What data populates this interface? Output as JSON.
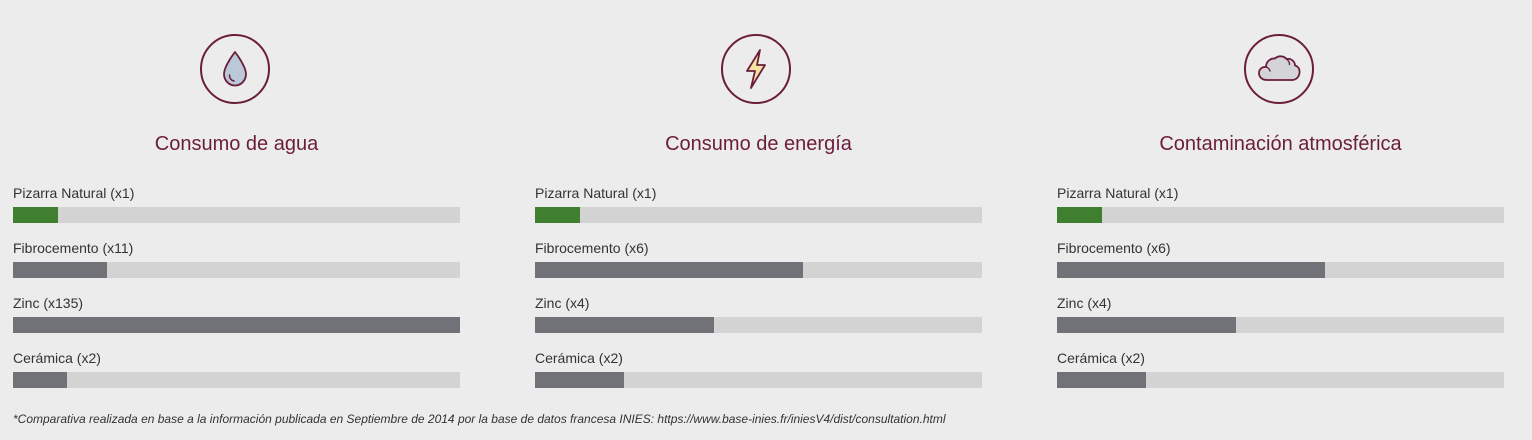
{
  "colors": {
    "background": "#ececec",
    "accent": "#6b1d3c",
    "best_bar": "#3f7f2f",
    "bar": "#707278",
    "track": "#d3d3d3"
  },
  "panels": [
    {
      "icon": "water-drop-icon",
      "title": "Consumo de agua",
      "items": [
        {
          "label": "Pizarra Natural (x1)"
        },
        {
          "label": "Fibrocemento (x11)"
        },
        {
          "label": "Zinc (x135)"
        },
        {
          "label": "Cerámica (x2)"
        }
      ]
    },
    {
      "icon": "lightning-bolt-icon",
      "title": "Consumo de energía",
      "items": [
        {
          "label": "Pizarra Natural (x1)"
        },
        {
          "label": "Fibrocemento (x6)"
        },
        {
          "label": "Zinc (x4)"
        },
        {
          "label": "Cerámica (x2)"
        }
      ]
    },
    {
      "icon": "cloud-icon",
      "title": "Contaminación atmosférica",
      "items": [
        {
          "label": "Pizarra Natural (x1)"
        },
        {
          "label": "Fibrocemento (x6)"
        },
        {
          "label": "Zinc (x4)"
        },
        {
          "label": "Cerámica (x2)"
        }
      ]
    }
  ],
  "chart_data": [
    {
      "type": "bar",
      "title": "Consumo de agua",
      "categories": [
        "Pizarra Natural (x1)",
        "Fibrocemento (x11)",
        "Zinc (x135)",
        "Cerámica (x2)"
      ],
      "values": [
        0.1,
        0.21,
        1.0,
        0.12
      ],
      "ylim": [
        0,
        1
      ]
    },
    {
      "type": "bar",
      "title": "Consumo de energía",
      "categories": [
        "Pizarra Natural (x1)",
        "Fibrocemento (x6)",
        "Zinc (x4)",
        "Cerámica (x2)"
      ],
      "values": [
        0.1,
        0.6,
        0.4,
        0.2
      ],
      "ylim": [
        0,
        1
      ]
    },
    {
      "type": "bar",
      "title": "Contaminación atmosférica",
      "categories": [
        "Pizarra Natural (x1)",
        "Fibrocemento (x6)",
        "Zinc (x4)",
        "Cerámica (x2)"
      ],
      "values": [
        0.1,
        0.6,
        0.4,
        0.2
      ],
      "ylim": [
        0,
        1
      ]
    }
  ],
  "footnote": "*Comparativa realizada en base a la información publicada en Septiembre de 2014 por la base de datos francesa INIES: https://www.base-inies.fr/iniesV4/dist/consultation.html"
}
